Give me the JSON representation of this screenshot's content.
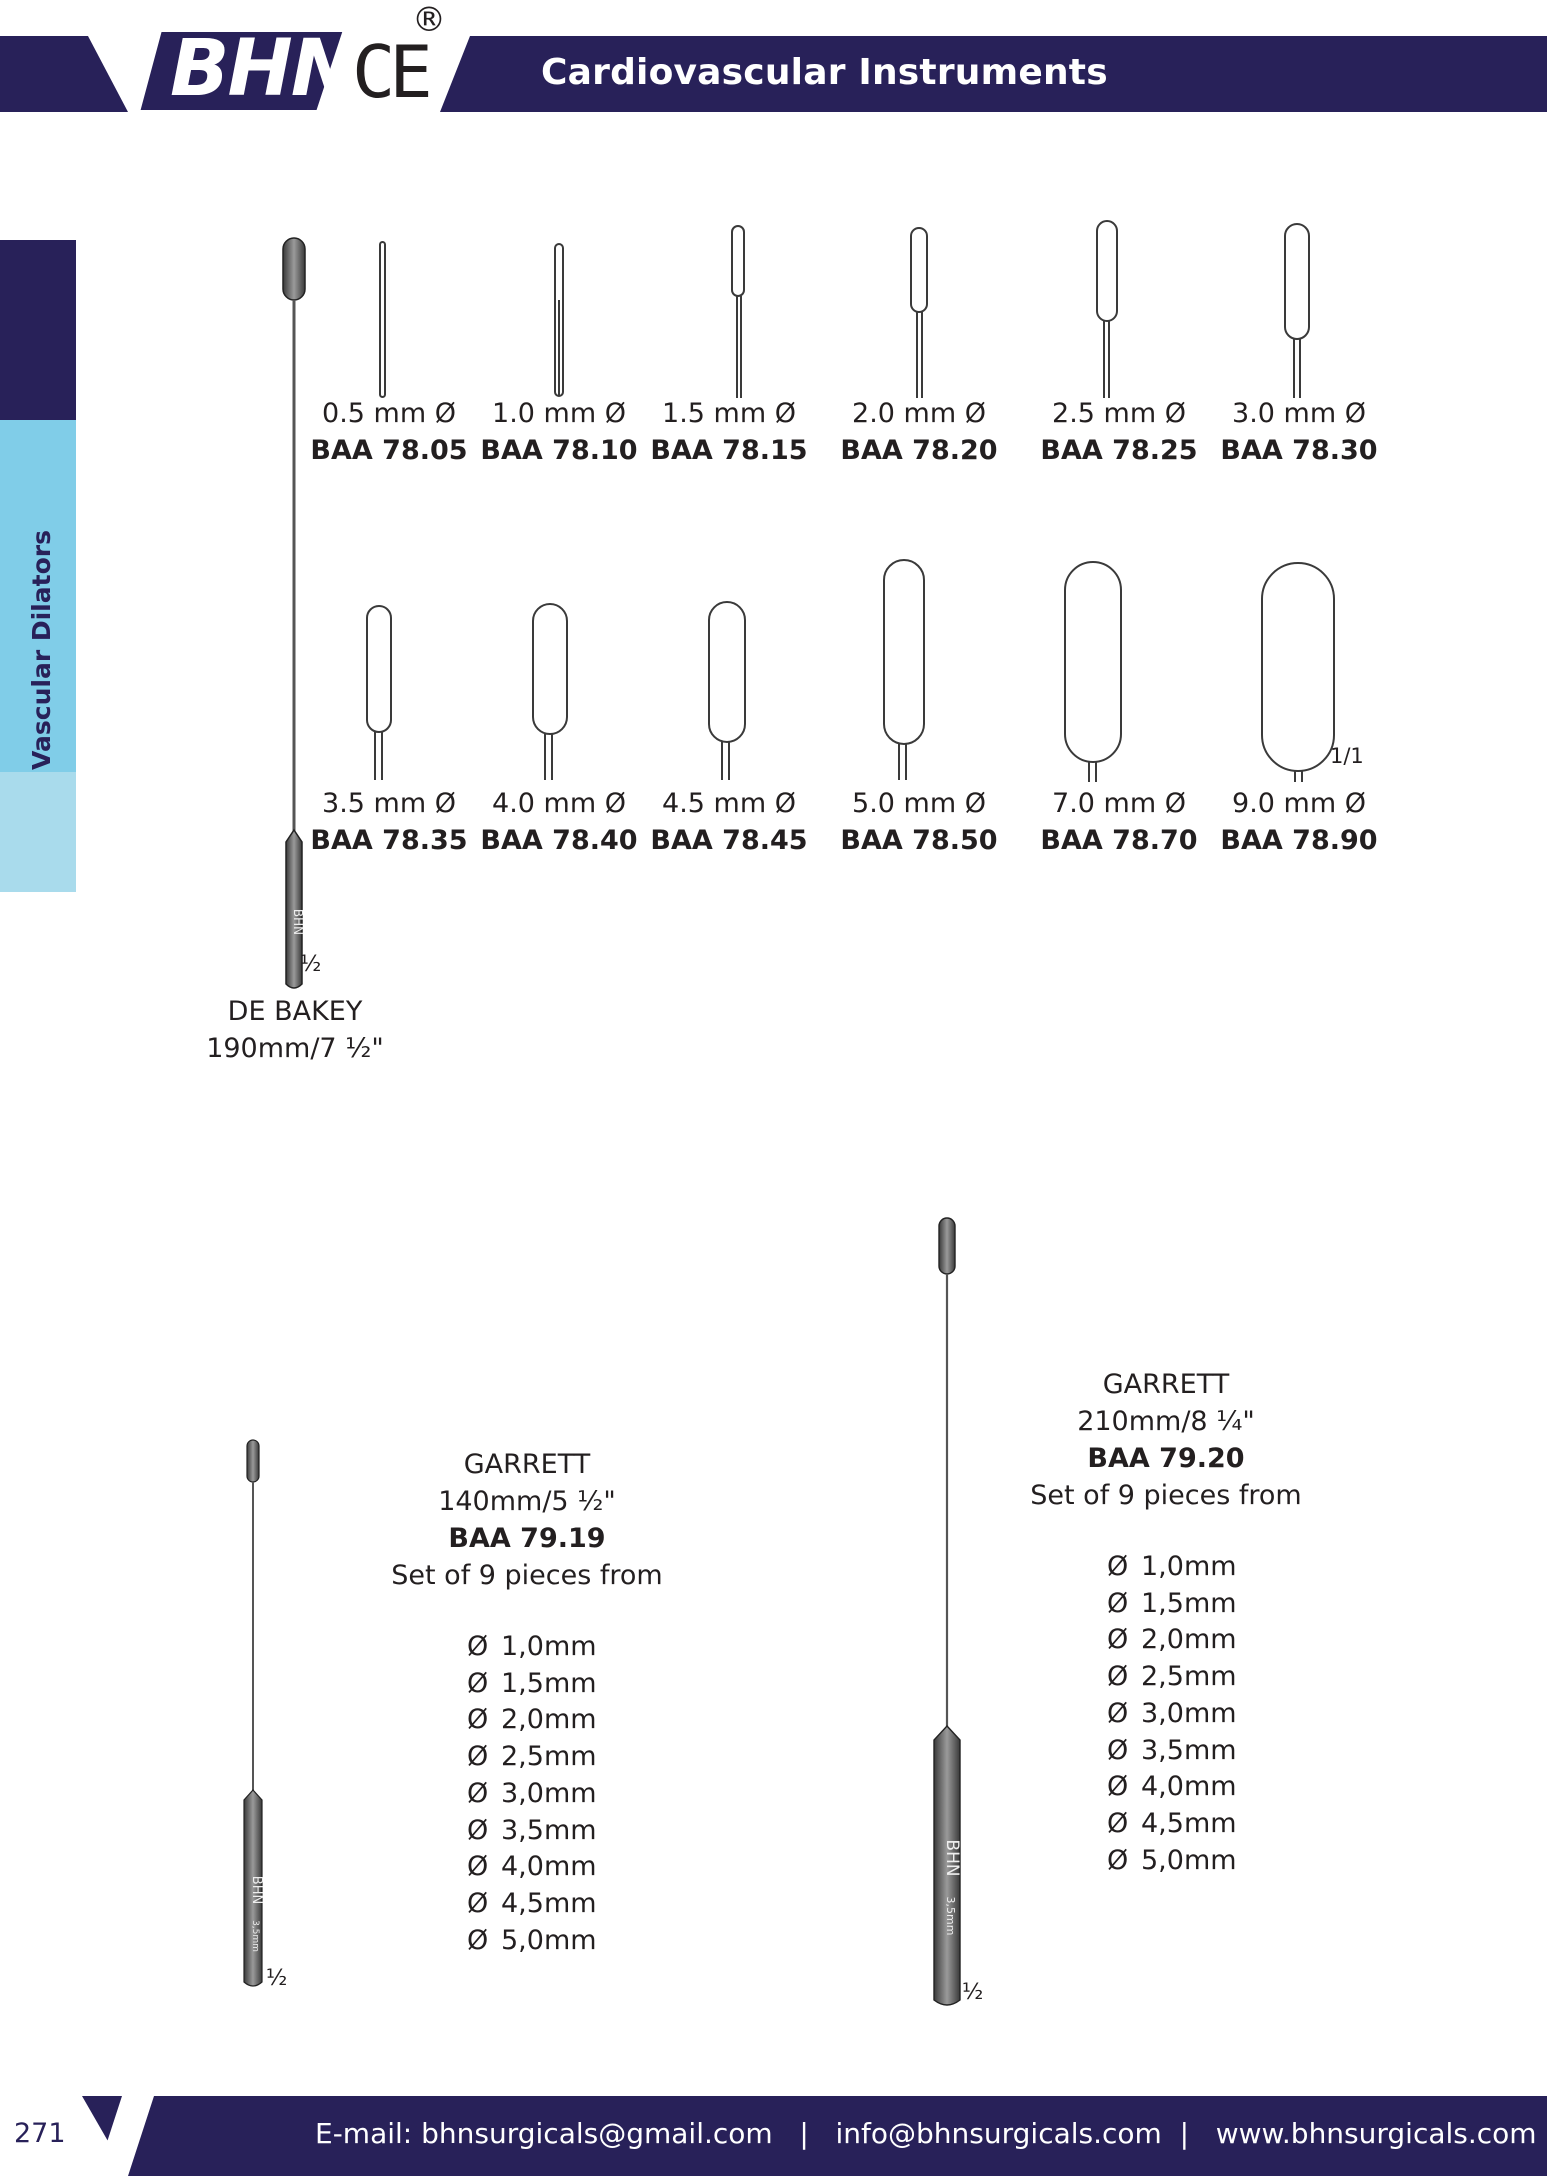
{
  "header": {
    "logo_text": "BHN",
    "ce_mark": "CE",
    "registered_mark": "®",
    "title": "Cardiovascular Instruments"
  },
  "sidebar": {
    "section_label": "Vascular Dilators"
  },
  "debakey": {
    "name": "DE BAKEY",
    "length": "190mm/7 ½\"",
    "scale": "½",
    "handle_logo": "BHN",
    "tips_scale": "1/1",
    "tips": [
      {
        "size": "0.5 mm Ø",
        "code": "BAA 78.05"
      },
      {
        "size": "1.0 mm Ø",
        "code": "BAA 78.10"
      },
      {
        "size": "1.5 mm Ø",
        "code": "BAA 78.15"
      },
      {
        "size": "2.0 mm Ø",
        "code": "BAA 78.20"
      },
      {
        "size": "2.5 mm Ø",
        "code": "BAA 78.25"
      },
      {
        "size": "3.0 mm Ø",
        "code": "BAA 78.30"
      },
      {
        "size": "3.5 mm Ø",
        "code": "BAA 78.35"
      },
      {
        "size": "4.0 mm Ø",
        "code": "BAA 78.40"
      },
      {
        "size": "4.5 mm Ø",
        "code": "BAA 78.45"
      },
      {
        "size": "5.0 mm Ø",
        "code": "BAA 78.50"
      },
      {
        "size": "7.0 mm Ø",
        "code": "BAA 78.70"
      },
      {
        "size": "9.0 mm Ø",
        "code": "BAA 78.90"
      }
    ]
  },
  "garrett_small": {
    "name": "GARRETT",
    "length": "140mm/5 ½\"",
    "code": "BAA 79.19",
    "set_text": "Set of 9 pieces from",
    "scale": "½",
    "handle_logo": "BHN",
    "handle_size": "3,5mm",
    "sizes": [
      "1,0mm",
      "1,5mm",
      "2,0mm",
      "2,5mm",
      "3,0mm",
      "3,5mm",
      "4,0mm",
      "4,5mm",
      "5,0mm"
    ]
  },
  "garrett_large": {
    "name": "GARRETT",
    "length": "210mm/8 ¼\"",
    "code": "BAA 79.20",
    "set_text": "Set of 9 pieces from",
    "scale": "½",
    "handle_logo": "BHN",
    "handle_size": "3,5mm",
    "sizes": [
      "1,0mm",
      "1,5mm",
      "2,0mm",
      "2,5mm",
      "3,0mm",
      "3,5mm",
      "4,0mm",
      "4,5mm",
      "5,0mm"
    ]
  },
  "diameter_symbol": "Ø",
  "footer": {
    "page_number": "271",
    "contact": "E-mail: bhnsurgicals@gmail.com   |   info@bhnsurgicals.com  |   www.bhnsurgicals.com"
  },
  "colors": {
    "navy": "#282159",
    "side_light": "#80cde8",
    "side_pale": "#a9dbec"
  }
}
